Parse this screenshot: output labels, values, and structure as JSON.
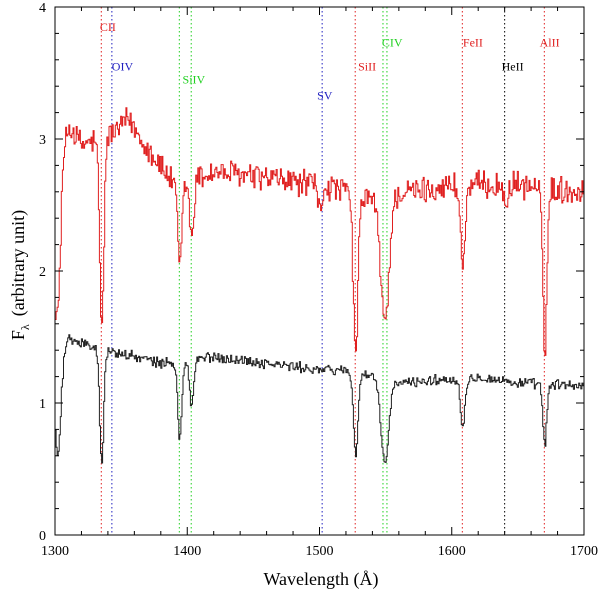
{
  "chart_data": {
    "type": "line",
    "title": "",
    "xlabel": "Wavelength (Å)",
    "ylabel_main": "F",
    "ylabel_sub": "λ",
    "ylabel_rest": "(arbitrary unit)",
    "xlim": [
      1300,
      1700
    ],
    "ylim": [
      0,
      4
    ],
    "xticks": [
      1300,
      1400,
      1500,
      1600,
      1700
    ],
    "yticks": [
      0,
      1,
      2,
      3,
      4
    ],
    "grid": false,
    "line_markers": [
      {
        "label": "CII",
        "wavelengths": [
          1335
        ],
        "color": "#e02020",
        "label_wavelength": 1340,
        "label_y": 3.82
      },
      {
        "label": "OIV",
        "wavelengths": [
          1343
        ],
        "color": "#2020c0",
        "label_wavelength": 1351,
        "label_y": 3.52
      },
      {
        "label": "SiIV",
        "wavelengths": [
          1394,
          1403
        ],
        "color": "#20d020",
        "label_wavelength": 1405,
        "label_y": 3.42
      },
      {
        "label": "SV",
        "wavelengths": [
          1502
        ],
        "color": "#2020c0",
        "label_wavelength": 1504,
        "label_y": 3.3
      },
      {
        "label": "SiII",
        "wavelengths": [
          1527
        ],
        "color": "#e02020",
        "label_wavelength": 1536,
        "label_y": 3.52
      },
      {
        "label": "CIV",
        "wavelengths": [
          1548,
          1551
        ],
        "color": "#20d020",
        "label_wavelength": 1555,
        "label_y": 3.7
      },
      {
        "label": "FeII",
        "wavelengths": [
          1608
        ],
        "color": "#e02020",
        "label_wavelength": 1616,
        "label_y": 3.7
      },
      {
        "label": "HeII",
        "wavelengths": [
          1640
        ],
        "color": "#000000",
        "label_wavelength": 1646,
        "label_y": 3.52
      },
      {
        "label": "AlII",
        "wavelengths": [
          1670
        ],
        "color": "#e02020",
        "label_wavelength": 1674,
        "label_y": 3.7
      }
    ],
    "series": [
      {
        "name": "upper spectrum",
        "color": "#e02020",
        "continuum": [
          [
            1300,
            2.2
          ],
          [
            1305,
            2.85
          ],
          [
            1310,
            3.1
          ],
          [
            1320,
            2.95
          ],
          [
            1345,
            3.05
          ],
          [
            1355,
            3.15
          ],
          [
            1365,
            3.0
          ],
          [
            1390,
            2.65
          ],
          [
            1420,
            2.75
          ],
          [
            1460,
            2.7
          ],
          [
            1500,
            2.65
          ],
          [
            1540,
            2.55
          ],
          [
            1600,
            2.65
          ],
          [
            1650,
            2.65
          ],
          [
            1700,
            2.6
          ]
        ],
        "noise": 0.09,
        "features": [
          {
            "x": 1302,
            "depth": 0.75,
            "width": 2.0
          },
          {
            "x": 1335,
            "depth": 1.45,
            "width": 1.6
          },
          {
            "x": 1394,
            "depth": 0.62,
            "width": 1.6
          },
          {
            "x": 1403,
            "depth": 0.45,
            "width": 1.6
          },
          {
            "x": 1500,
            "depth": 0.2,
            "width": 1.5
          },
          {
            "x": 1527,
            "depth": 1.2,
            "width": 1.8
          },
          {
            "x": 1549,
            "depth": 0.95,
            "width": 3.2
          },
          {
            "x": 1608,
            "depth": 0.6,
            "width": 1.8
          },
          {
            "x": 1640,
            "depth": 0.15,
            "width": 1.5
          },
          {
            "x": 1670,
            "depth": 1.2,
            "width": 1.6
          }
        ]
      },
      {
        "name": "lower spectrum",
        "color": "#222222",
        "continuum": [
          [
            1300,
            1.15
          ],
          [
            1310,
            1.5
          ],
          [
            1320,
            1.45
          ],
          [
            1345,
            1.38
          ],
          [
            1360,
            1.35
          ],
          [
            1380,
            1.3
          ],
          [
            1420,
            1.35
          ],
          [
            1460,
            1.3
          ],
          [
            1500,
            1.25
          ],
          [
            1520,
            1.25
          ],
          [
            1560,
            1.15
          ],
          [
            1620,
            1.2
          ],
          [
            1650,
            1.15
          ],
          [
            1700,
            1.13
          ]
        ],
        "noise": 0.035,
        "features": [
          {
            "x": 1302,
            "depth": 0.6,
            "width": 2.0
          },
          {
            "x": 1335,
            "depth": 0.85,
            "width": 1.5
          },
          {
            "x": 1394,
            "depth": 0.58,
            "width": 1.6
          },
          {
            "x": 1403,
            "depth": 0.35,
            "width": 1.6
          },
          {
            "x": 1527,
            "depth": 0.62,
            "width": 1.7
          },
          {
            "x": 1549,
            "depth": 0.62,
            "width": 3.0
          },
          {
            "x": 1608,
            "depth": 0.35,
            "width": 1.8
          },
          {
            "x": 1670,
            "depth": 0.45,
            "width": 1.5
          }
        ]
      }
    ]
  }
}
